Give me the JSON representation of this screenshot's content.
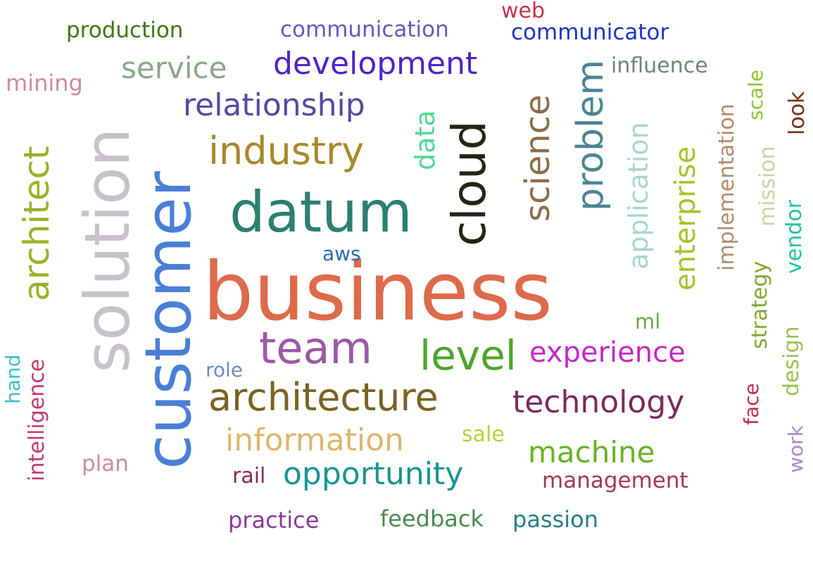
{
  "words": [
    {
      "text": "business",
      "color": "#de6a4c"
    },
    {
      "text": "customer",
      "color": "#4a7fd6"
    },
    {
      "text": "solution",
      "color": "#c7c2ca"
    },
    {
      "text": "datum",
      "color": "#2b7f71"
    },
    {
      "text": "cloud",
      "color": "#1e2716"
    },
    {
      "text": "team",
      "color": "#9a58a6"
    },
    {
      "text": "architecture",
      "color": "#7a6220"
    },
    {
      "text": "industry",
      "color": "#a8882a"
    },
    {
      "text": "architect",
      "color": "#9bb12a"
    },
    {
      "text": "science",
      "color": "#8c6c4a"
    },
    {
      "text": "problem",
      "color": "#4a8496"
    },
    {
      "text": "level",
      "color": "#4ea52a"
    },
    {
      "text": "development",
      "color": "#4a26c6"
    },
    {
      "text": "relationship",
      "color": "#5a46a2"
    },
    {
      "text": "experience",
      "color": "#c428c6"
    },
    {
      "text": "technology",
      "color": "#7a2a5e"
    },
    {
      "text": "information",
      "color": "#dcb66a"
    },
    {
      "text": "opportunity",
      "color": "#1a9492"
    },
    {
      "text": "machine",
      "color": "#68b226"
    },
    {
      "text": "application",
      "color": "#a8d6d2"
    },
    {
      "text": "enterprise",
      "color": "#a4c42e"
    },
    {
      "text": "service",
      "color": "#8aa888"
    },
    {
      "text": "data",
      "color": "#52d894"
    },
    {
      "text": "implementation",
      "color": "#b08a6e"
    },
    {
      "text": "mission",
      "color": "#c2d8a2"
    },
    {
      "text": "vendor",
      "color": "#22c2a6"
    },
    {
      "text": "strategy",
      "color": "#80a832"
    },
    {
      "text": "design",
      "color": "#98c252"
    },
    {
      "text": "production",
      "color": "#3a7a10"
    },
    {
      "text": "communication",
      "color": "#6a56c2"
    },
    {
      "text": "communicator",
      "color": "#1a36c2"
    },
    {
      "text": "web",
      "color": "#c8324a"
    },
    {
      "text": "influence",
      "color": "#6a8872"
    },
    {
      "text": "mining",
      "color": "#d08a9e"
    },
    {
      "text": "scale",
      "color": "#8ac434"
    },
    {
      "text": "look",
      "color": "#7a2e16"
    },
    {
      "text": "aws",
      "color": "#2a6ab2"
    },
    {
      "text": "ml",
      "color": "#66aa46"
    },
    {
      "text": "role",
      "color": "#6a8ec4"
    },
    {
      "text": "sale",
      "color": "#b0d238"
    },
    {
      "text": "hand",
      "color": "#3ac0c4"
    },
    {
      "text": "intelligence",
      "color": "#c23a6e"
    },
    {
      "text": "plan",
      "color": "#d08a9e"
    },
    {
      "text": "rail",
      "color": "#8a2a56"
    },
    {
      "text": "management",
      "color": "#a23a4e"
    },
    {
      "text": "face",
      "color": "#c22a52"
    },
    {
      "text": "work",
      "color": "#a88ac6"
    },
    {
      "text": "practice",
      "color": "#8a3a98"
    },
    {
      "text": "feedback",
      "color": "#4a8a4e"
    },
    {
      "text": "passion",
      "color": "#2a7a8a"
    }
  ]
}
